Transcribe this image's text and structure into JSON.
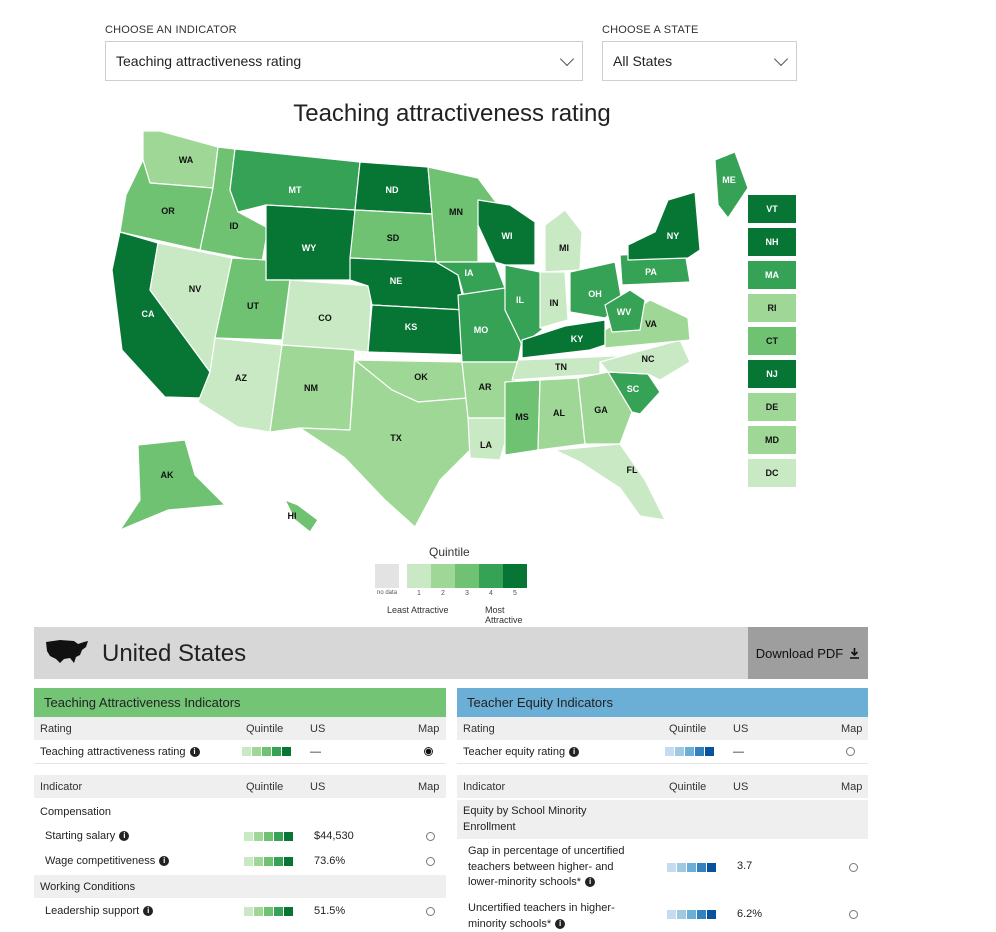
{
  "controls": {
    "indicator_label": "CHOOSE AN INDICATOR",
    "indicator_value": "Teaching attractiveness rating",
    "state_label": "CHOOSE A STATE",
    "state_value": "All States"
  },
  "map": {
    "title": "Teaching attractiveness rating",
    "quintile_colors": {
      "nodata": "#e3e3e3",
      "1": "#c9e9c4",
      "2": "#9fd796",
      "3": "#6ec271",
      "4": "#36a256",
      "5": "#077534"
    },
    "states": [
      {
        "abbr": "WA",
        "quintile": 2
      },
      {
        "abbr": "OR",
        "quintile": 3
      },
      {
        "abbr": "CA",
        "quintile": 5
      },
      {
        "abbr": "ID",
        "quintile": 3
      },
      {
        "abbr": "NV",
        "quintile": 1
      },
      {
        "abbr": "MT",
        "quintile": 4
      },
      {
        "abbr": "WY",
        "quintile": 5
      },
      {
        "abbr": "UT",
        "quintile": 3
      },
      {
        "abbr": "CO",
        "quintile": 1
      },
      {
        "abbr": "AZ",
        "quintile": 1
      },
      {
        "abbr": "NM",
        "quintile": 2
      },
      {
        "abbr": "ND",
        "quintile": 5
      },
      {
        "abbr": "SD",
        "quintile": 3
      },
      {
        "abbr": "NE",
        "quintile": 5
      },
      {
        "abbr": "KS",
        "quintile": 5
      },
      {
        "abbr": "OK",
        "quintile": 2
      },
      {
        "abbr": "TX",
        "quintile": 2
      },
      {
        "abbr": "MN",
        "quintile": 3
      },
      {
        "abbr": "IA",
        "quintile": 4
      },
      {
        "abbr": "MO",
        "quintile": 4
      },
      {
        "abbr": "AR",
        "quintile": 2
      },
      {
        "abbr": "LA",
        "quintile": 1
      },
      {
        "abbr": "WI",
        "quintile": 5
      },
      {
        "abbr": "IL",
        "quintile": 4
      },
      {
        "abbr": "MI",
        "quintile": 1
      },
      {
        "abbr": "IN",
        "quintile": 1
      },
      {
        "abbr": "OH",
        "quintile": 4
      },
      {
        "abbr": "KY",
        "quintile": 5
      },
      {
        "abbr": "TN",
        "quintile": 1
      },
      {
        "abbr": "MS",
        "quintile": 3
      },
      {
        "abbr": "AL",
        "quintile": 2
      },
      {
        "abbr": "GA",
        "quintile": 2
      },
      {
        "abbr": "FL",
        "quintile": 1
      },
      {
        "abbr": "SC",
        "quintile": 4
      },
      {
        "abbr": "NC",
        "quintile": 1
      },
      {
        "abbr": "VA",
        "quintile": 2
      },
      {
        "abbr": "WV",
        "quintile": 4
      },
      {
        "abbr": "PA",
        "quintile": 4
      },
      {
        "abbr": "NY",
        "quintile": 5
      },
      {
        "abbr": "ME",
        "quintile": 4
      },
      {
        "abbr": "AK",
        "quintile": 3
      },
      {
        "abbr": "HI",
        "quintile": 3
      }
    ],
    "side_states": [
      {
        "abbr": "VT",
        "quintile": 5
      },
      {
        "abbr": "NH",
        "quintile": 5
      },
      {
        "abbr": "MA",
        "quintile": 4
      },
      {
        "abbr": "RI",
        "quintile": 2
      },
      {
        "abbr": "CT",
        "quintile": 3
      },
      {
        "abbr": "NJ",
        "quintile": 5
      },
      {
        "abbr": "DE",
        "quintile": 2
      },
      {
        "abbr": "MD",
        "quintile": 2
      },
      {
        "abbr": "DC",
        "quintile": 1
      }
    ]
  },
  "legend": {
    "title": "Quintile",
    "nodata": "no data",
    "numbers": [
      "1",
      "2",
      "3",
      "4",
      "5"
    ],
    "least": "Least Attractive",
    "most": "Most Attractive"
  },
  "header": {
    "region": "United States",
    "download": "Download PDF",
    "icon": "us-map-icon"
  },
  "left_panel": {
    "title": "Teaching Attractiveness Indicators",
    "color": "#74c476",
    "cols": {
      "rating": "Rating",
      "quintile": "Quintile",
      "us": "US",
      "map": "Map"
    },
    "rating_row": {
      "label": "Teaching attractiveness rating",
      "us": "—"
    },
    "indicator_cols": {
      "indicator": "Indicator",
      "quintile": "Quintile",
      "us": "US",
      "map": "Map"
    },
    "sections": [
      {
        "name": "Compensation",
        "items": [
          {
            "label": "Starting salary",
            "us": "$44,530"
          },
          {
            "label": "Wage competitiveness",
            "us": "73.6%"
          }
        ]
      },
      {
        "name": "Working Conditions",
        "items": [
          {
            "label": "Leadership support",
            "us": "51.5%"
          }
        ]
      }
    ]
  },
  "right_panel": {
    "title": "Teacher Equity Indicators",
    "color": "#6baed6",
    "cols": {
      "rating": "Rating",
      "quintile": "Quintile",
      "us": "US",
      "map": "Map"
    },
    "rating_row": {
      "label": "Teacher equity rating",
      "us": "—"
    },
    "indicator_cols": {
      "indicator": "Indicator",
      "quintile": "Quintile",
      "us": "US",
      "map": "Map"
    },
    "section": {
      "name_line1": "Equity by School Minority",
      "name_line2": "Enrollment"
    },
    "items": [
      {
        "line1": "Gap in percentage of uncertified",
        "line2": "teachers between higher- and",
        "line3": "lower-minority schools*",
        "us": "3.7"
      },
      {
        "line1": "Uncertified teachers in higher-",
        "line2": "minority schools*",
        "us": "6.2%"
      }
    ]
  }
}
